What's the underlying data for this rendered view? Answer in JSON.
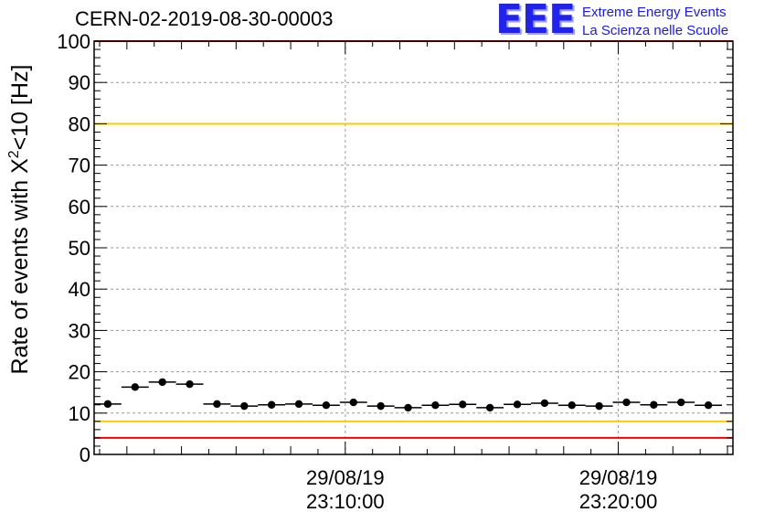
{
  "header": {
    "title": "CERN-02-2019-08-30-00003",
    "logo_mark": "EEE",
    "logo_line1": "Extreme Energy Events",
    "logo_line2": "La Scienza nelle Scuole"
  },
  "chart_data": {
    "type": "scatter",
    "title": "CERN-02-2019-08-30-00003",
    "xlabel": "",
    "ylabel": "Rate of events with X²<10 [Hz]",
    "ylabel_parts": {
      "pre": "Rate of events with X",
      "sup": "2",
      "post": "<10 [Hz]"
    },
    "ylim": [
      0,
      100
    ],
    "yticks": [
      0,
      10,
      20,
      30,
      40,
      50,
      60,
      70,
      80,
      90,
      100
    ],
    "x_unit": "minutes after 23:00:00 on 29/08/19",
    "xlim": [
      0.8,
      24.2
    ],
    "xticks": [
      {
        "x": 10,
        "date": "29/08/19",
        "time": "23:10:00"
      },
      {
        "x": 20,
        "date": "29/08/19",
        "time": "23:20:00"
      }
    ],
    "grid": true,
    "bin_width_min": 1.0,
    "series": [
      {
        "x": [
          1.3,
          2.3,
          3.3,
          4.3,
          5.3,
          6.3,
          7.3,
          8.3,
          9.3,
          10.3,
          11.3,
          12.3,
          13.3,
          14.3,
          15.3,
          16.3,
          17.3,
          18.3,
          19.3,
          20.3,
          21.3,
          22.3,
          23.3
        ],
        "y": [
          12.2,
          16.3,
          17.5,
          17.0,
          12.2,
          11.7,
          12.0,
          12.2,
          11.9,
          12.6,
          11.7,
          11.3,
          11.9,
          12.1,
          11.3,
          12.1,
          12.4,
          11.9,
          11.7,
          12.6,
          12.0,
          12.6,
          11.9
        ]
      }
    ],
    "reference_lines": [
      {
        "y": 100,
        "color": "#ff0000"
      },
      {
        "y": 80,
        "color": "#ffcc00"
      },
      {
        "y": 8,
        "color": "#ffcc00"
      },
      {
        "y": 4,
        "color": "#ff0000"
      }
    ],
    "colors": {
      "marker": "#000000",
      "red": "#ff0000",
      "yellow": "#ffcc00",
      "logo": "#2222ee"
    }
  }
}
